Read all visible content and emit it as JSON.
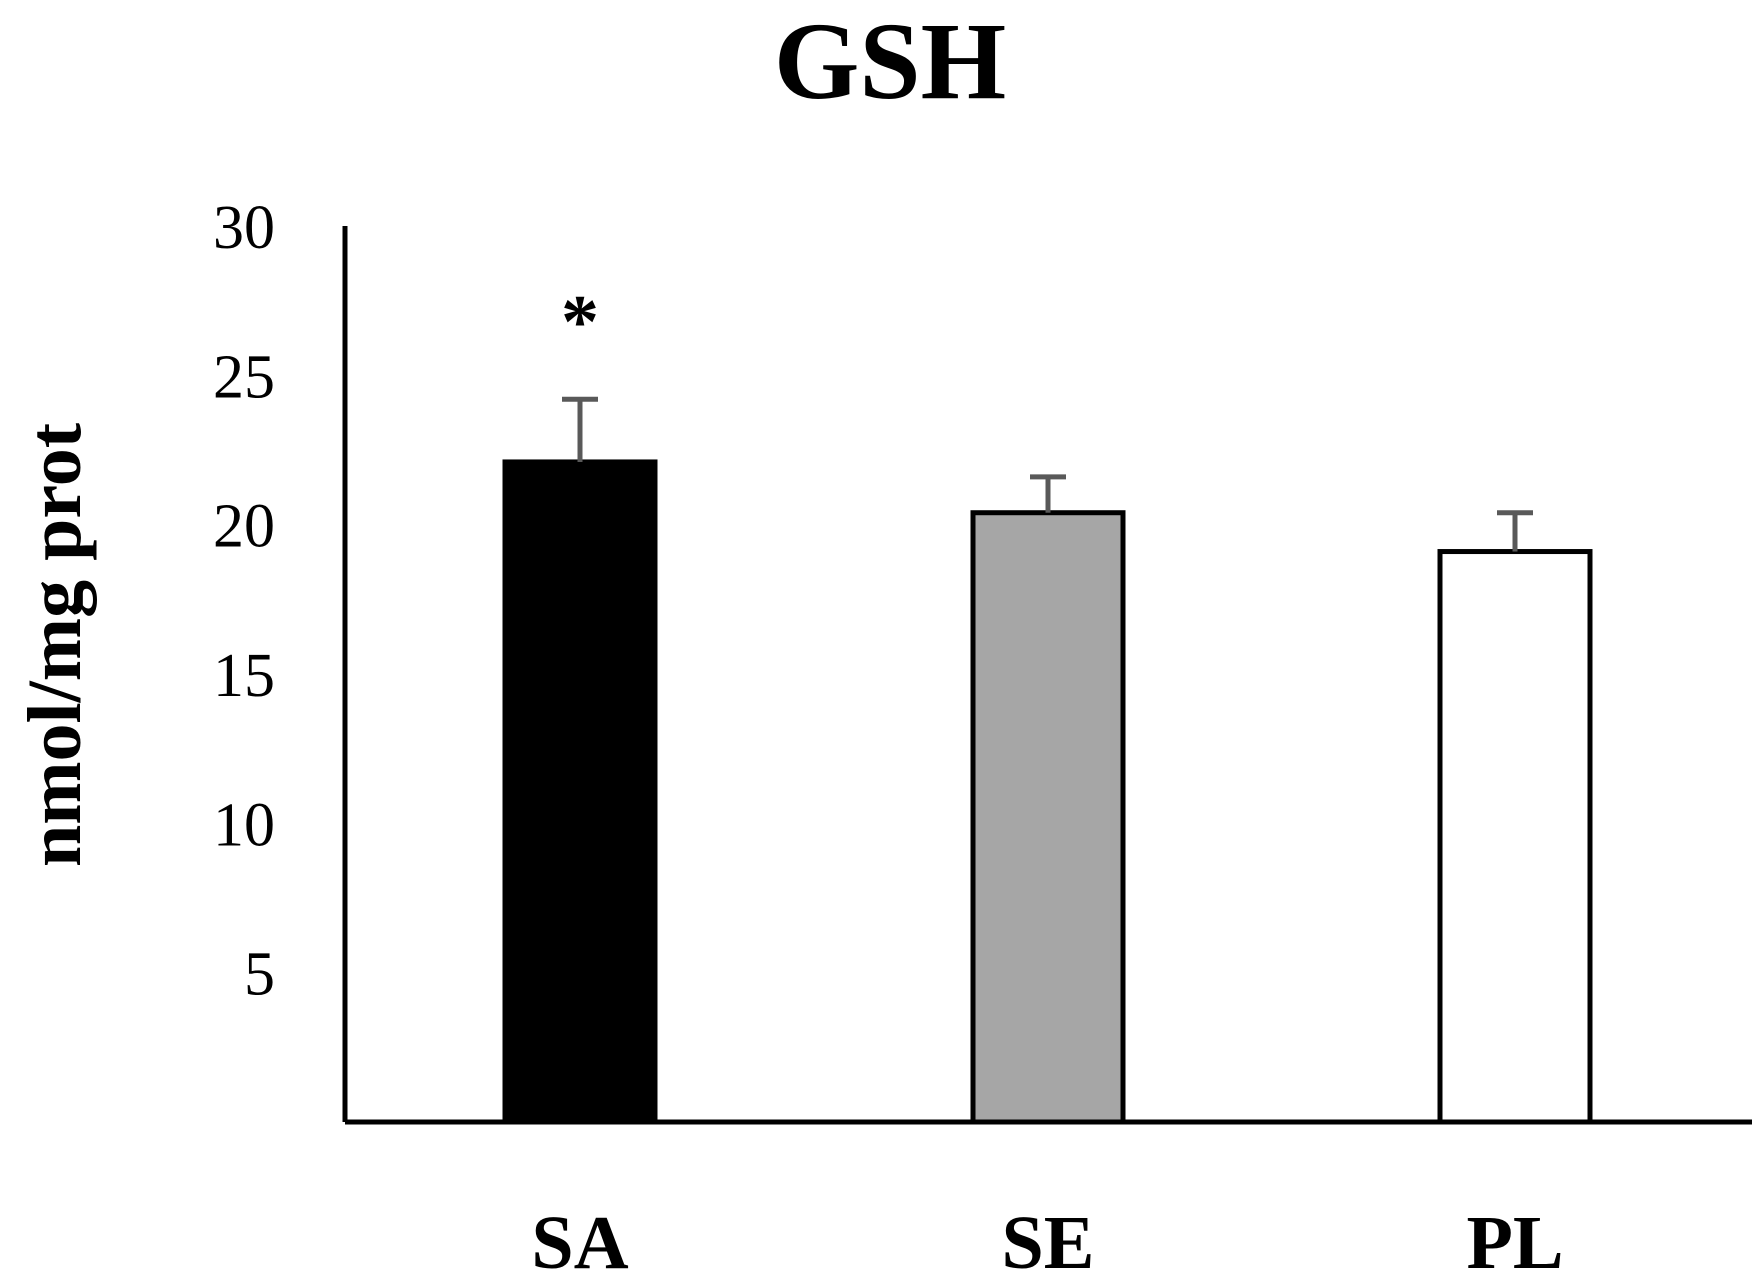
{
  "chart_data": {
    "type": "bar",
    "title": "GSH",
    "xlabel": "",
    "ylabel": "nmol/mg prot",
    "ylim": [
      0,
      30
    ],
    "yticks": [
      5,
      10,
      15,
      20,
      25,
      30
    ],
    "grid": false,
    "legend": "none",
    "categories": [
      "SA",
      "SE",
      "PL"
    ],
    "values": [
      22.1,
      20.4,
      19.1
    ],
    "errors": [
      2.1,
      1.2,
      1.3
    ],
    "fills": [
      "#000000",
      "#a6a6a6",
      "#ffffff"
    ],
    "annotations": [
      {
        "category": "SA",
        "text": "*"
      }
    ]
  },
  "colors": {
    "axis": "#000000",
    "error_bar": "#595959",
    "bar_edge": "#000000"
  }
}
